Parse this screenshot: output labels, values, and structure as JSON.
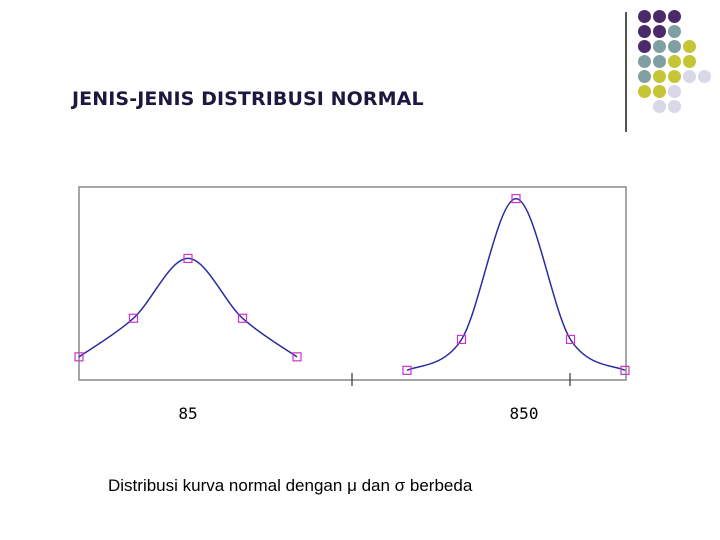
{
  "slide": {
    "title": "JENIS-JENIS DISTRIBUSI NORMAL",
    "caption_prefix": "Distribusi kurva normal dengan ",
    "mu": "μ",
    "caption_middle": " dan ",
    "sigma": "σ",
    "caption_suffix": " berbeda"
  },
  "decor": {
    "dot_colors": {
      "purple": "#4b2a6b",
      "teal": "#7f9fa3",
      "olive": "#c5c536",
      "lavender": "#d8d8e8"
    },
    "dot_rows": [
      [
        "purple",
        "purple",
        "purple",
        "",
        ""
      ],
      [
        "purple",
        "purple",
        "teal",
        "",
        ""
      ],
      [
        "purple",
        "teal",
        "teal",
        "olive",
        ""
      ],
      [
        "teal",
        "teal",
        "olive",
        "olive",
        ""
      ],
      [
        "teal",
        "olive",
        "olive",
        "lavender",
        "lavender"
      ],
      [
        "olive",
        "olive",
        "lavender",
        "",
        ""
      ],
      [
        "",
        "lavender",
        "lavender",
        "",
        ""
      ]
    ]
  },
  "chart_data": {
    "type": "line",
    "title": "",
    "xlabel": "",
    "ylabel": "",
    "grid": false,
    "line_color": "#2a2aa0",
    "marker_color": "#cc33cc",
    "tick_labels": [
      "85",
      "850"
    ],
    "series": [
      {
        "mean_label": "85",
        "x": [
          -2,
          -1,
          0,
          1,
          2
        ],
        "y": [
          0.12,
          0.32,
          0.63,
          0.32,
          0.12
        ]
      },
      {
        "mean_label": "850",
        "x": [
          -2,
          -1,
          0,
          1,
          2
        ],
        "y": [
          0.05,
          0.21,
          0.94,
          0.21,
          0.05
        ]
      }
    ],
    "ylim": [
      0,
      1
    ]
  }
}
